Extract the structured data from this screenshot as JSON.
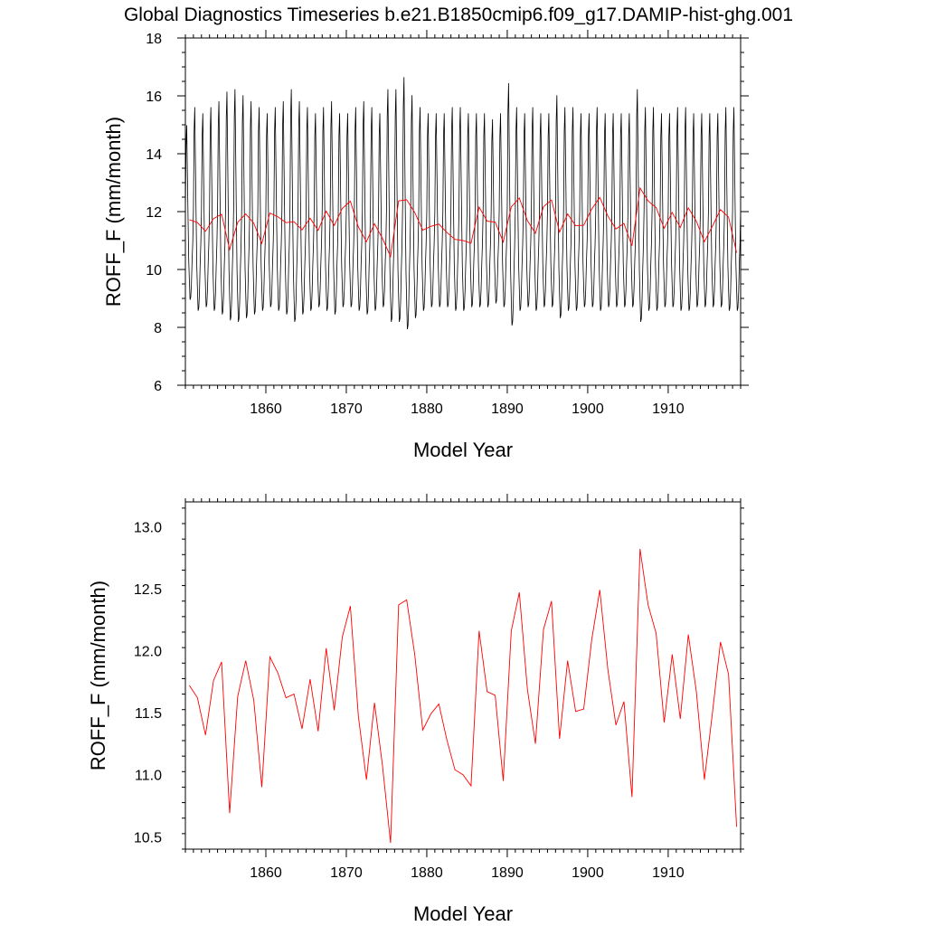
{
  "figure": {
    "title": "Global Diagnostics Timeseries b.e21.B1850cmip6.f09_g17.DAMIP-hist-ghg.001"
  },
  "chart_data": [
    {
      "type": "line",
      "xlabel": "Model Year",
      "ylabel": "ROFF_F (mm/month)",
      "xlim": [
        1850,
        1919
      ],
      "ylim": [
        6,
        18
      ],
      "x_ticks": [
        1860,
        1870,
        1880,
        1890,
        1900,
        1910
      ],
      "y_ticks": [
        6,
        8,
        10,
        12,
        14,
        16,
        18
      ],
      "y_tick_labels": [
        "6",
        "8",
        "10",
        "12",
        "14",
        "16",
        "18"
      ],
      "grid": false,
      "series": [
        {
          "kind": "monthly",
          "color": "#000000",
          "start_year": 1850,
          "monthly_pattern": [
            12.0,
            14.6,
            15.4,
            13.6,
            11.8,
            10.2,
            9.4,
            8.7,
            8.8,
            9.3,
            10.2,
            10.9
          ],
          "annual_amplitude": [
            0.9,
            1.05,
            1.0,
            1.05,
            1.1,
            1.18,
            1.2,
            1.15,
            1.1,
            1.05,
            1.0,
            1.05,
            1.1,
            1.2,
            1.1,
            1.05,
            1.0,
            1.05,
            1.1,
            1.0,
            1.0,
            1.05,
            1.1,
            1.05,
            1.0,
            1.2,
            1.2,
            1.3,
            1.15,
            1.05,
            1.0,
            1.0,
            1.0,
            1.05,
            1.05,
            1.0,
            1.0,
            1.0,
            0.95,
            1.0,
            1.25,
            1.05,
            1.0,
            1.05,
            1.0,
            1.0,
            1.15,
            1.05,
            1.05,
            1.0,
            1.0,
            1.05,
            1.0,
            1.0,
            1.0,
            1.0,
            1.2,
            1.05,
            1.05,
            1.0,
            1.0,
            1.05,
            1.05,
            1.0,
            1.0,
            1.0,
            1.0,
            1.05,
            1.05,
            1.1
          ]
        },
        {
          "kind": "annual",
          "color": "#ff0000",
          "x": [
            1850.5,
            1851.5,
            1852.5,
            1853.5,
            1854.5,
            1855.5,
            1856.5,
            1857.5,
            1858.5,
            1859.5,
            1860.5,
            1861.5,
            1862.5,
            1863.5,
            1864.5,
            1865.5,
            1866.5,
            1867.5,
            1868.5,
            1869.5,
            1870.5,
            1871.5,
            1872.5,
            1873.5,
            1874.5,
            1875.5,
            1876.5,
            1877.5,
            1878.5,
            1879.5,
            1880.5,
            1881.5,
            1882.5,
            1883.5,
            1884.5,
            1885.5,
            1886.5,
            1887.5,
            1888.5,
            1889.5,
            1890.5,
            1891.5,
            1892.5,
            1893.5,
            1894.5,
            1895.5,
            1896.5,
            1897.5,
            1898.5,
            1899.5,
            1900.5,
            1901.5,
            1902.5,
            1903.5,
            1904.5,
            1905.5,
            1906.5,
            1907.5,
            1908.5,
            1909.5,
            1910.5,
            1911.5,
            1912.5,
            1913.5,
            1914.5,
            1915.5,
            1916.5,
            1917.5,
            1918.5
          ],
          "y": [
            11.72,
            11.62,
            11.32,
            11.76,
            11.91,
            10.69,
            11.63,
            11.92,
            11.6,
            10.9,
            11.95,
            11.82,
            11.62,
            11.65,
            11.37,
            11.77,
            11.35,
            12.02,
            11.52,
            12.11,
            12.36,
            11.47,
            10.96,
            11.58,
            11.07,
            10.45,
            12.37,
            12.41,
            11.97,
            11.36,
            11.49,
            11.57,
            11.28,
            11.04,
            11.0,
            10.91,
            12.16,
            11.67,
            11.64,
            10.95,
            12.16,
            12.47,
            11.69,
            11.25,
            12.17,
            12.4,
            11.29,
            11.92,
            11.51,
            11.53,
            12.09,
            12.49,
            11.85,
            11.4,
            11.59,
            10.82,
            12.82,
            12.37,
            12.14,
            11.42,
            11.97,
            11.45,
            12.13,
            11.67,
            10.96,
            11.5,
            12.07,
            11.81,
            10.58
          ]
        }
      ]
    },
    {
      "type": "line",
      "xlabel": "Model Year",
      "ylabel": "ROFF_F (mm/month)",
      "xlim": [
        1850,
        1919
      ],
      "ylim": [
        10.4,
        13.2
      ],
      "x_ticks": [
        1860,
        1870,
        1880,
        1890,
        1900,
        1910
      ],
      "y_ticks": [
        10.5,
        11.0,
        11.5,
        12.0,
        12.5,
        13.0
      ],
      "y_tick_labels": [
        "10.5",
        "11.0",
        "11.5",
        "12.0",
        "12.5",
        "13.0"
      ],
      "grid": false,
      "series": [
        {
          "kind": "annual",
          "color": "#ff0000",
          "ref": 1
        }
      ]
    }
  ]
}
